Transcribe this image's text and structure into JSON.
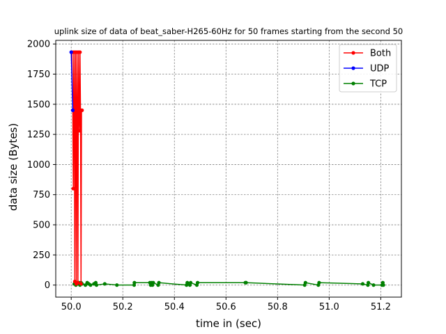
{
  "chart_data": {
    "type": "line",
    "title": "uplink size of data of beat_saber-H265-60Hz for 50 frames starting from the second 50",
    "xlabel": "time in (sec)",
    "ylabel": "data size (Bytes)",
    "xlim": [
      49.94,
      51.28
    ],
    "ylim": [
      -100,
      2030
    ],
    "xticks": [
      "50.0",
      "50.2",
      "50.4",
      "50.6",
      "50.8",
      "51.0",
      "51.2"
    ],
    "yticks": [
      "0",
      "250",
      "500",
      "750",
      "1000",
      "1250",
      "1500",
      "1750",
      "2000"
    ],
    "grid": true,
    "legend_position": "top-right",
    "series": [
      {
        "name": "Both",
        "color": "#ff0000",
        "points": [
          [
            50.003,
            1932
          ],
          [
            50.006,
            1450
          ],
          [
            50.008,
            800
          ],
          [
            50.01,
            1932
          ],
          [
            50.012,
            1450
          ],
          [
            50.014,
            30
          ],
          [
            50.016,
            1932
          ],
          [
            50.018,
            1450
          ],
          [
            50.02,
            10
          ],
          [
            50.022,
            1932
          ],
          [
            50.024,
            1450
          ],
          [
            50.026,
            20
          ],
          [
            50.028,
            1932
          ],
          [
            50.03,
            1450
          ],
          [
            50.032,
            1280
          ],
          [
            50.034,
            1932
          ],
          [
            50.036,
            1450
          ],
          [
            50.038,
            10
          ],
          [
            50.04,
            1450
          ],
          [
            50.042,
            1450
          ]
        ]
      },
      {
        "name": "UDP",
        "color": "#0000ff",
        "points": [
          [
            50.0,
            1932
          ],
          [
            50.006,
            1450
          ]
        ]
      },
      {
        "name": "TCP",
        "color": "#008000",
        "points": [
          [
            50.012,
            10
          ],
          [
            50.015,
            20
          ],
          [
            50.018,
            0
          ],
          [
            50.022,
            20
          ],
          [
            50.026,
            10
          ],
          [
            50.03,
            20
          ],
          [
            50.034,
            0
          ],
          [
            50.038,
            20
          ],
          [
            50.042,
            10
          ],
          [
            50.055,
            0
          ],
          [
            50.062,
            20
          ],
          [
            50.068,
            10
          ],
          [
            50.075,
            0
          ],
          [
            50.088,
            10
          ],
          [
            50.095,
            20
          ],
          [
            50.098,
            0
          ],
          [
            50.13,
            10
          ],
          [
            50.177,
            0
          ],
          [
            50.244,
            0
          ],
          [
            50.245,
            20
          ],
          [
            50.305,
            20
          ],
          [
            50.308,
            0
          ],
          [
            50.312,
            20
          ],
          [
            50.315,
            0
          ],
          [
            50.318,
            20
          ],
          [
            50.337,
            0
          ],
          [
            50.34,
            20
          ],
          [
            50.447,
            0
          ],
          [
            50.45,
            20
          ],
          [
            50.46,
            0
          ],
          [
            50.463,
            20
          ],
          [
            50.487,
            0
          ],
          [
            50.49,
            20
          ],
          [
            50.675,
            20
          ],
          [
            50.678,
            20
          ],
          [
            50.905,
            0
          ],
          [
            50.908,
            20
          ],
          [
            50.958,
            0
          ],
          [
            50.961,
            20
          ],
          [
            51.13,
            10
          ],
          [
            51.15,
            0
          ],
          [
            51.152,
            20
          ],
          [
            51.172,
            0
          ],
          [
            51.205,
            0
          ],
          [
            51.208,
            20
          ],
          [
            51.21,
            0
          ]
        ]
      }
    ]
  }
}
